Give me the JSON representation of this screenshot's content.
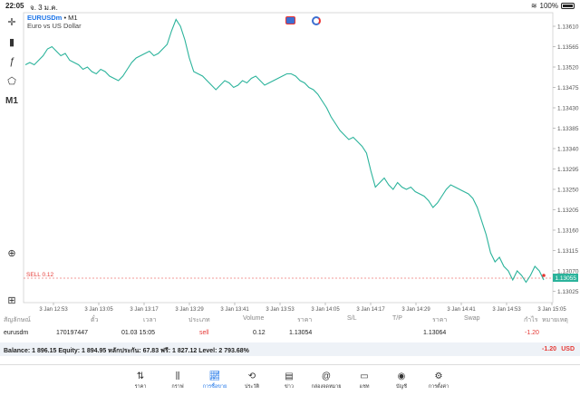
{
  "status_bar": {
    "time": "22:05",
    "date": "จ. 3 ม.ค.",
    "battery": "100%"
  },
  "chart": {
    "symbol": "EURUSDm",
    "timeframe": "M1",
    "description": "Euro vs US Dollar",
    "timeframe_button": "M1",
    "order_line_label": "SELL 0.12",
    "current_price": "1.13055",
    "line_color": "#2bb39b"
  },
  "chart_data": {
    "type": "line",
    "y_ticks": [
      1.1361,
      1.13565,
      1.1352,
      1.13475,
      1.1343,
      1.13385,
      1.1334,
      1.13295,
      1.1325,
      1.13205,
      1.1316,
      1.13115,
      1.1307,
      1.13025
    ],
    "y_tick_labels": [
      "1.13610",
      "1.13565",
      "1.13520",
      "1.13475",
      "1.13430",
      "1.13385",
      "1.13340",
      "1.13295",
      "1.13250",
      "1.13205",
      "1.13160",
      "1.13115",
      "1.13070",
      "1.13025"
    ],
    "ylim": [
      1.13,
      1.1364
    ],
    "x_tick_labels": [
      "3 Jan 12:53",
      "3 Jan 13:05",
      "3 Jan 13:17",
      "3 Jan 13:29",
      "3 Jan 13:41",
      "3 Jan 13:53",
      "3 Jan 14:05",
      "3 Jan 14:17",
      "3 Jan 14:29",
      "3 Jan 14:41",
      "3 Jan 14:53",
      "3 Jan 15:05"
    ],
    "order_price": 1.13054,
    "values": [
      1.13525,
      1.1353,
      1.13525,
      1.13535,
      1.13545,
      1.1356,
      1.13565,
      1.13555,
      1.13545,
      1.1355,
      1.13535,
      1.1353,
      1.13525,
      1.13515,
      1.1352,
      1.1351,
      1.13505,
      1.13515,
      1.1351,
      1.135,
      1.13495,
      1.1349,
      1.135,
      1.13515,
      1.1353,
      1.1354,
      1.13545,
      1.1355,
      1.13555,
      1.13545,
      1.1355,
      1.1356,
      1.1357,
      1.136,
      1.13625,
      1.1361,
      1.1358,
      1.1354,
      1.1351,
      1.13505,
      1.135,
      1.1349,
      1.1348,
      1.1347,
      1.1348,
      1.1349,
      1.13485,
      1.13475,
      1.1348,
      1.1349,
      1.13485,
      1.13495,
      1.135,
      1.1349,
      1.1348,
      1.13485,
      1.1349,
      1.13495,
      1.135,
      1.13505,
      1.13505,
      1.135,
      1.1349,
      1.13485,
      1.13475,
      1.1347,
      1.1346,
      1.13445,
      1.1343,
      1.1341,
      1.13395,
      1.1338,
      1.1337,
      1.1336,
      1.13365,
      1.13355,
      1.13345,
      1.1333,
      1.1329,
      1.13255,
      1.13265,
      1.13275,
      1.1326,
      1.1325,
      1.13265,
      1.13255,
      1.1325,
      1.13255,
      1.13245,
      1.1324,
      1.13235,
      1.13225,
      1.1321,
      1.1322,
      1.13235,
      1.1325,
      1.1326,
      1.13255,
      1.1325,
      1.13245,
      1.1324,
      1.1323,
      1.1321,
      1.1318,
      1.1315,
      1.1311,
      1.1309,
      1.131,
      1.1308,
      1.1307,
      1.1305,
      1.1307,
      1.1306,
      1.13045,
      1.1306,
      1.1308,
      1.1307,
      1.1305
    ]
  },
  "toolbar": {
    "icons": [
      "crosshair-icon",
      "indicators-icon",
      "function-icon",
      "objects-icon"
    ],
    "zoom_icon": "zoom-icon",
    "add_icon": "add-icon"
  },
  "table": {
    "headers": [
      "สัญลักษณ์",
      "ตั๋ว",
      "เวลา",
      "ประเภท",
      "Volume",
      "ราคา",
      "S/L",
      "T/P",
      "ราคา",
      "Swap",
      "กำไร",
      "หมายเหตุ"
    ],
    "row": {
      "symbol": "eurusdm",
      "ticket": "170197447",
      "time": "01.03 15:05",
      "type": "sell",
      "volume": "0.12",
      "open_price": "1.13054",
      "current_price": "1.13064",
      "profit": "-1.20"
    }
  },
  "balance": {
    "text": "Balance: 1 896.15 Equity: 1 894.95 หลักประกัน: 67.83 ฟรี: 1 827.12 Level: 2 793.68%",
    "profit": "-1.20",
    "currency": "USD"
  },
  "nav": {
    "items": [
      {
        "label": "ราคา",
        "icon": "quotes-icon"
      },
      {
        "label": "กราฟ",
        "icon": "chart-icon"
      },
      {
        "label": "การซื้อขาย",
        "icon": "trade-icon"
      },
      {
        "label": "ประวัติ",
        "icon": "history-icon"
      },
      {
        "label": "ข่าว",
        "icon": "news-icon"
      },
      {
        "label": "กล่องจดหมาย",
        "icon": "mailbox-icon"
      },
      {
        "label": "แชท",
        "icon": "chat-icon"
      },
      {
        "label": "บัญชี",
        "icon": "account-icon"
      },
      {
        "label": "การตั้งค่า",
        "icon": "settings-icon"
      }
    ],
    "active_index": 2
  }
}
